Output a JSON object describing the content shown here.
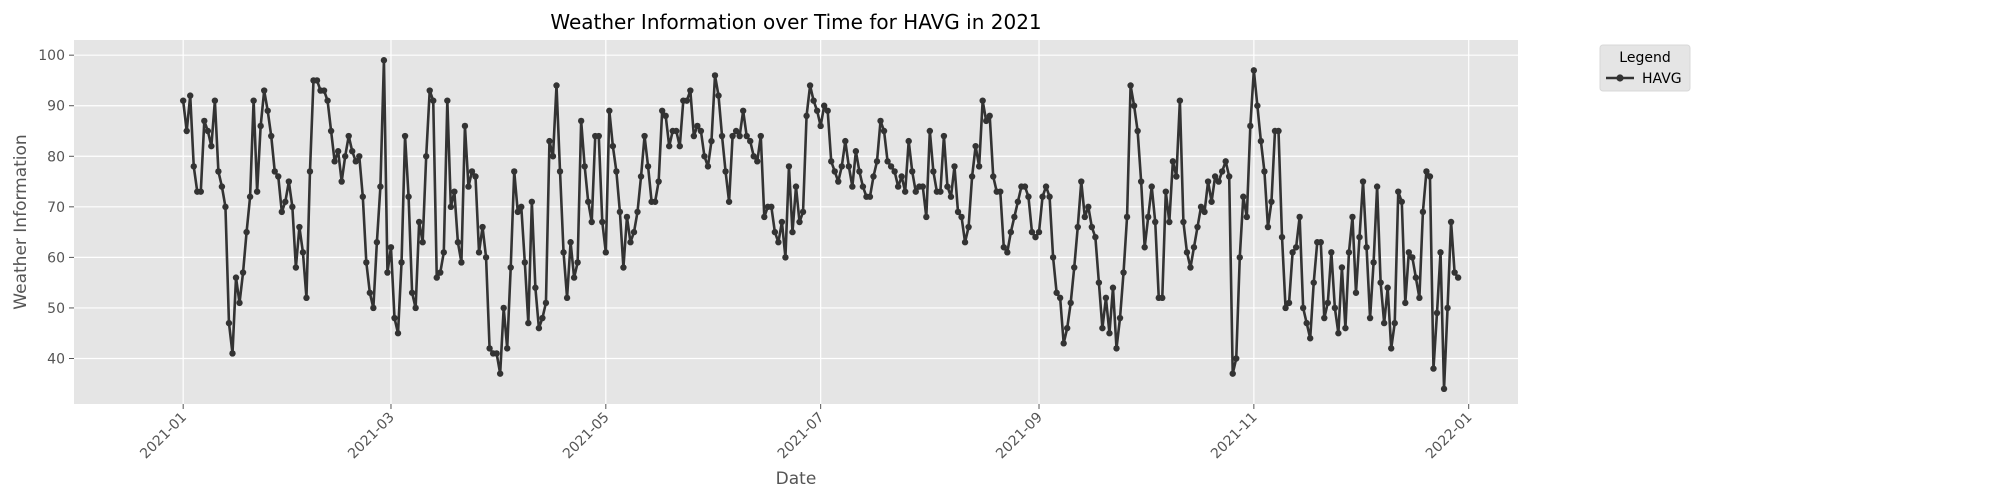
{
  "chart_data": {
    "type": "line",
    "title": "Weather Information over Time for HAVG in 2021",
    "xlabel": "Date",
    "ylabel": "Weather Information",
    "x_start": "2021-01-01",
    "x_end": "2021-12-31",
    "xlim": [
      "2020-12-01",
      "2022-01-15"
    ],
    "ylim": [
      31,
      103
    ],
    "x_ticks": [
      "2021-01",
      "2021-03",
      "2021-05",
      "2021-07",
      "2021-09",
      "2021-11",
      "2022-01"
    ],
    "y_ticks": [
      40,
      50,
      60,
      70,
      80,
      90,
      100
    ],
    "grid": true,
    "legend": {
      "title": "Legend",
      "placement": "outside-top-right"
    },
    "colors": {
      "line": "#333333",
      "plot_bg": "#e5e5e5",
      "grid": "#ffffff"
    },
    "series": [
      {
        "name": "HAVG",
        "values": [
          91,
          85,
          92,
          78,
          73,
          73,
          87,
          85,
          82,
          91,
          77,
          74,
          70,
          47,
          41,
          56,
          51,
          57,
          65,
          72,
          91,
          73,
          86,
          93,
          89,
          84,
          77,
          76,
          69,
          71,
          75,
          70,
          58,
          66,
          61,
          52,
          77,
          95,
          95,
          93,
          93,
          91,
          85,
          79,
          81,
          75,
          80,
          84,
          81,
          79,
          80,
          72,
          59,
          53,
          50,
          63,
          74,
          99,
          57,
          62,
          48,
          45,
          59,
          84,
          72,
          53,
          50,
          67,
          63,
          80,
          93,
          91,
          56,
          57,
          61,
          91,
          70,
          73,
          63,
          59,
          86,
          74,
          77,
          76,
          61,
          66,
          60,
          42,
          41,
          41,
          37,
          50,
          42,
          58,
          77,
          69,
          70,
          59,
          47,
          71,
          54,
          46,
          48,
          51,
          83,
          80,
          94,
          77,
          61,
          52,
          63,
          56,
          59,
          87,
          78,
          71,
          67,
          84,
          84,
          67,
          61,
          89,
          82,
          77,
          69,
          58,
          68,
          63,
          65,
          69,
          76,
          84,
          78,
          71,
          71,
          75,
          89,
          88,
          82,
          85,
          85,
          82,
          91,
          91,
          93,
          84,
          86,
          85,
          80,
          78,
          83,
          96,
          92,
          84,
          77,
          71,
          84,
          85,
          84,
          89,
          84,
          83,
          80,
          79,
          84,
          68,
          70,
          70,
          65,
          63,
          67,
          60,
          78,
          65,
          74,
          67,
          69,
          88,
          94,
          91,
          89,
          86,
          90,
          89,
          79,
          77,
          75,
          78,
          83,
          78,
          74,
          81,
          77,
          74,
          72,
          72,
          76,
          79,
          87,
          85,
          79,
          78,
          77,
          74,
          76,
          73,
          83,
          77,
          73,
          74,
          74,
          68,
          85,
          77,
          73,
          73,
          84,
          74,
          72,
          78,
          69,
          68,
          63,
          66,
          76,
          82,
          78,
          91,
          87,
          88,
          76,
          73,
          73,
          62,
          61,
          65,
          68,
          71,
          74,
          74,
          72,
          65,
          64,
          65,
          72,
          74,
          72,
          60,
          53,
          52,
          43,
          46,
          51,
          58,
          66,
          75,
          68,
          70,
          66,
          64,
          55,
          46,
          52,
          45,
          54,
          42,
          48,
          57,
          68,
          94,
          90,
          85,
          75,
          62,
          68,
          74,
          67,
          52,
          52,
          73,
          67,
          79,
          76,
          91,
          67,
          61,
          58,
          62,
          66,
          70,
          69,
          75,
          71,
          76,
          75,
          77,
          79,
          76,
          37,
          40,
          60,
          72,
          68,
          86,
          97,
          90,
          83,
          77,
          66,
          71,
          85,
          85,
          64,
          50,
          51,
          61,
          62,
          68,
          50,
          47,
          44,
          55,
          63,
          63,
          48,
          51,
          61,
          50,
          45,
          58,
          46,
          61,
          68,
          53,
          64,
          75,
          62,
          48,
          59,
          74,
          55,
          47,
          54,
          42,
          47,
          73,
          71,
          51,
          61,
          60,
          56,
          52,
          69,
          77,
          76,
          38,
          49,
          61,
          34,
          50,
          67,
          57,
          56
        ]
      }
    ]
  }
}
